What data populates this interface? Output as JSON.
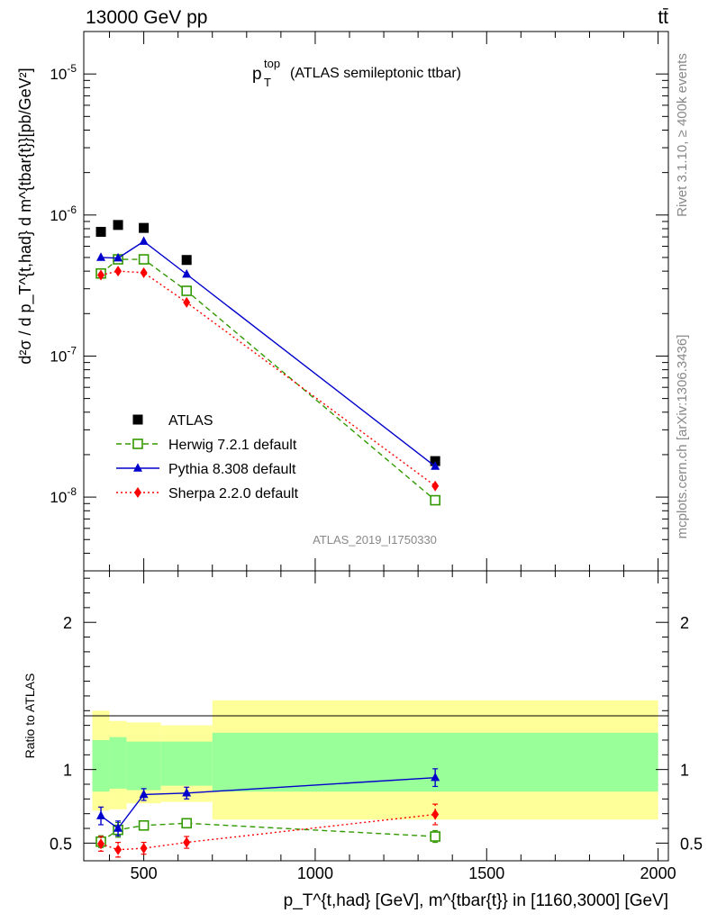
{
  "header": {
    "energy_label": "13000 GeV pp",
    "process_label": "tt̄"
  },
  "side_text": {
    "rivet": "Rivet 3.1.10, ≥ 400k events",
    "mcplots": "mcplots.cern.ch [arXiv:1306.3436]"
  },
  "chart_data": [
    {
      "type": "scatter",
      "panel": "main",
      "title_main": "p",
      "title_sup": "top",
      "title_sub": "T",
      "title_rest": "(ATLAS semileptonic ttbar)",
      "analysis_label": "ATLAS_2019_I1750330",
      "yscale": "log",
      "ylim": [
        3e-09,
        2e-05
      ],
      "xlim": [
        325,
        2030
      ],
      "ylabel": "d²σ / d p_T^{t,had} d m^{tbar{t}}[pb/GeV²]",
      "ytick_labels": [
        "10^{-8}",
        "10^{-7}",
        "10^{-6}",
        "10^{-5}"
      ],
      "ytick_values": [
        1e-08,
        1e-07,
        1e-06,
        1e-05
      ],
      "legend_position": "center-left",
      "x": [
        375,
        425,
        500,
        625,
        1350
      ],
      "series": [
        {
          "name": "ATLAS",
          "marker": "square-filled",
          "color": "#000000",
          "line": "none",
          "values": [
            7.6e-07,
            8.5e-07,
            8.1e-07,
            4.8e-07,
            1.8e-08
          ]
        },
        {
          "name": "Herwig 7.2.1 default",
          "marker": "square-open",
          "color": "#339900",
          "line": "dashed",
          "values": [
            3.85e-07,
            4.85e-07,
            4.85e-07,
            2.9e-07,
            9.5e-09
          ]
        },
        {
          "name": "Pythia 8.308 default",
          "marker": "triangle-filled",
          "color": "#0000cc",
          "line": "solid",
          "values": [
            5e-07,
            4.95e-07,
            6.5e-07,
            3.8e-07,
            1.65e-08
          ]
        },
        {
          "name": "Sherpa 2.2.0 default",
          "marker": "diamond-filled",
          "color": "#ff0000",
          "line": "dotted",
          "values": [
            3.75e-07,
            4e-07,
            3.9e-07,
            2.4e-07,
            1.2e-08
          ]
        }
      ]
    },
    {
      "type": "scatter",
      "panel": "ratio",
      "ylabel": "Ratio to ATLAS",
      "ylim": [
        0.38,
        2.35
      ],
      "xlim": [
        325,
        2030
      ],
      "ytick_labels": [
        "0.5",
        "1",
        "2"
      ],
      "ytick_values": [
        0.5,
        1,
        2
      ],
      "xtick_labels": [
        "500",
        "1000",
        "1500",
        "2000"
      ],
      "xtick_values": [
        500,
        1000,
        1500,
        2000
      ],
      "xlabel": "p_T^{t,had} [GeV], m^{tbar{t}} in [1160,3000] [GeV]",
      "reference_line": 1.0,
      "uncertainty_bands": {
        "bins": [
          [
            350,
            400
          ],
          [
            400,
            450
          ],
          [
            450,
            550
          ],
          [
            550,
            700
          ],
          [
            700,
            2000
          ]
        ],
        "total_low": [
          0.72,
          0.73,
          0.77,
          0.78,
          0.66
        ],
        "total_high": [
          1.4,
          1.33,
          1.32,
          1.3,
          1.47
        ],
        "stat_low": [
          0.85,
          0.87,
          0.86,
          0.89,
          0.85
        ],
        "stat_high": [
          1.2,
          1.22,
          1.19,
          1.19,
          1.25
        ],
        "total_color": "#ffff99",
        "stat_color": "#99ff99"
      },
      "x": [
        375,
        425,
        500,
        625,
        1350
      ],
      "series": [
        {
          "name": "Herwig 7.2.1 default",
          "color": "#339900",
          "marker": "square-open",
          "line": "dashed",
          "values": [
            0.51,
            0.59,
            0.62,
            0.635,
            0.545
          ],
          "err": [
            0.04,
            0.05,
            0.03,
            0.03,
            0.04
          ]
        },
        {
          "name": "Pythia 8.308 default",
          "color": "#0000cc",
          "marker": "triangle-filled",
          "line": "solid",
          "values": [
            0.685,
            0.6,
            0.83,
            0.84,
            0.945
          ],
          "err": [
            0.06,
            0.05,
            0.04,
            0.04,
            0.06
          ]
        },
        {
          "name": "Sherpa 2.2.0 default",
          "color": "#ff0000",
          "marker": "diamond-filled",
          "line": "dotted",
          "values": [
            0.495,
            0.455,
            0.465,
            0.505,
            0.695
          ],
          "err": [
            0.05,
            0.05,
            0.04,
            0.04,
            0.07
          ]
        }
      ]
    }
  ]
}
